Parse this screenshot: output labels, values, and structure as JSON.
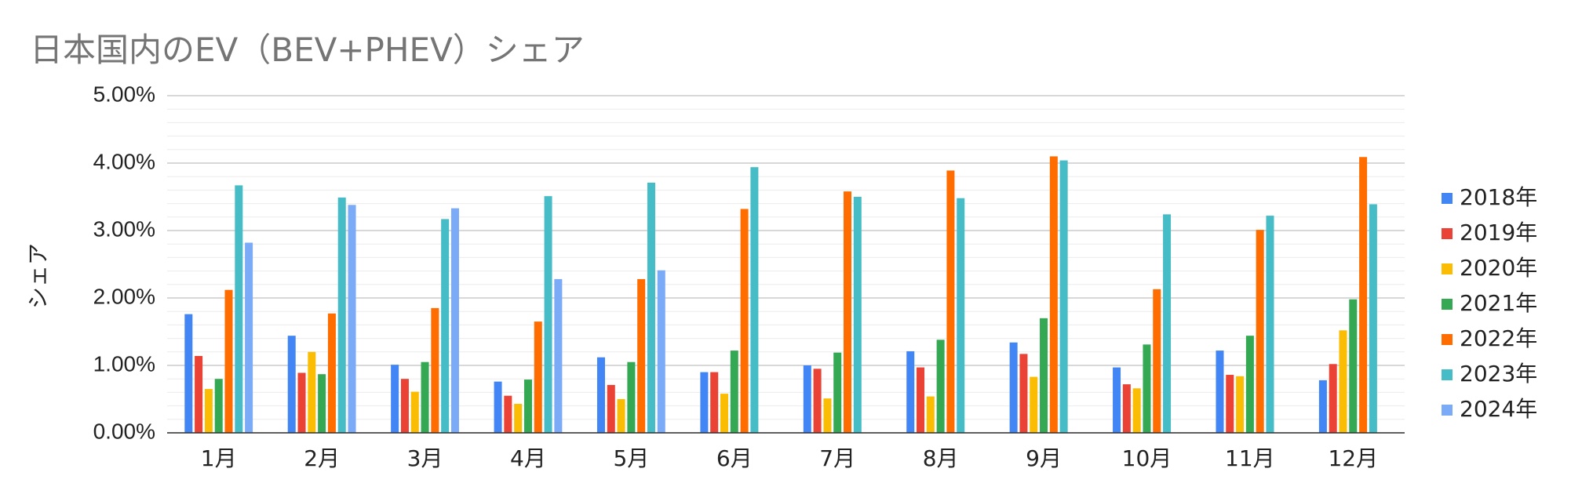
{
  "chart_data": {
    "type": "bar",
    "title": "日本国内のEV（BEV+PHEV）シェア",
    "ylabel": "シェア",
    "xlabel": "",
    "ylim": [
      0,
      5
    ],
    "yticks": [
      "0.00%",
      "1.00%",
      "2.00%",
      "3.00%",
      "4.00%",
      "5.00%"
    ],
    "grid": true,
    "legend_position": "right",
    "categories": [
      "1月",
      "2月",
      "3月",
      "4月",
      "5月",
      "6月",
      "7月",
      "8月",
      "9月",
      "10月",
      "11月",
      "12月"
    ],
    "series": [
      {
        "name": "2018年",
        "color": "#4285f4",
        "values": [
          1.76,
          1.44,
          1.01,
          0.76,
          1.12,
          0.9,
          1.0,
          1.21,
          1.34,
          0.97,
          1.22,
          0.78
        ]
      },
      {
        "name": "2019年",
        "color": "#ea4335",
        "values": [
          1.14,
          0.89,
          0.8,
          0.55,
          0.71,
          0.9,
          0.95,
          0.97,
          1.17,
          0.72,
          0.86,
          1.02
        ]
      },
      {
        "name": "2020年",
        "color": "#fbbc04",
        "values": [
          0.65,
          1.2,
          0.61,
          0.43,
          0.5,
          0.58,
          0.51,
          0.54,
          0.83,
          0.66,
          0.84,
          1.52
        ]
      },
      {
        "name": "2021年",
        "color": "#34a853",
        "values": [
          0.8,
          0.87,
          1.05,
          0.79,
          1.05,
          1.22,
          1.19,
          1.38,
          1.7,
          1.31,
          1.44,
          1.98
        ]
      },
      {
        "name": "2022年",
        "color": "#ff6d01",
        "values": [
          2.12,
          1.77,
          1.85,
          1.65,
          2.28,
          3.32,
          3.58,
          3.89,
          4.1,
          2.13,
          3.01,
          4.09
        ]
      },
      {
        "name": "2023年",
        "color": "#46bdc6",
        "values": [
          3.67,
          3.49,
          3.17,
          3.51,
          3.71,
          3.94,
          3.5,
          3.48,
          4.04,
          3.24,
          3.22,
          3.39
        ]
      },
      {
        "name": "2024年",
        "color": "#7baaf7",
        "values": [
          2.82,
          3.38,
          3.33,
          2.28,
          2.41,
          null,
          null,
          null,
          null,
          null,
          null,
          null
        ]
      }
    ]
  }
}
